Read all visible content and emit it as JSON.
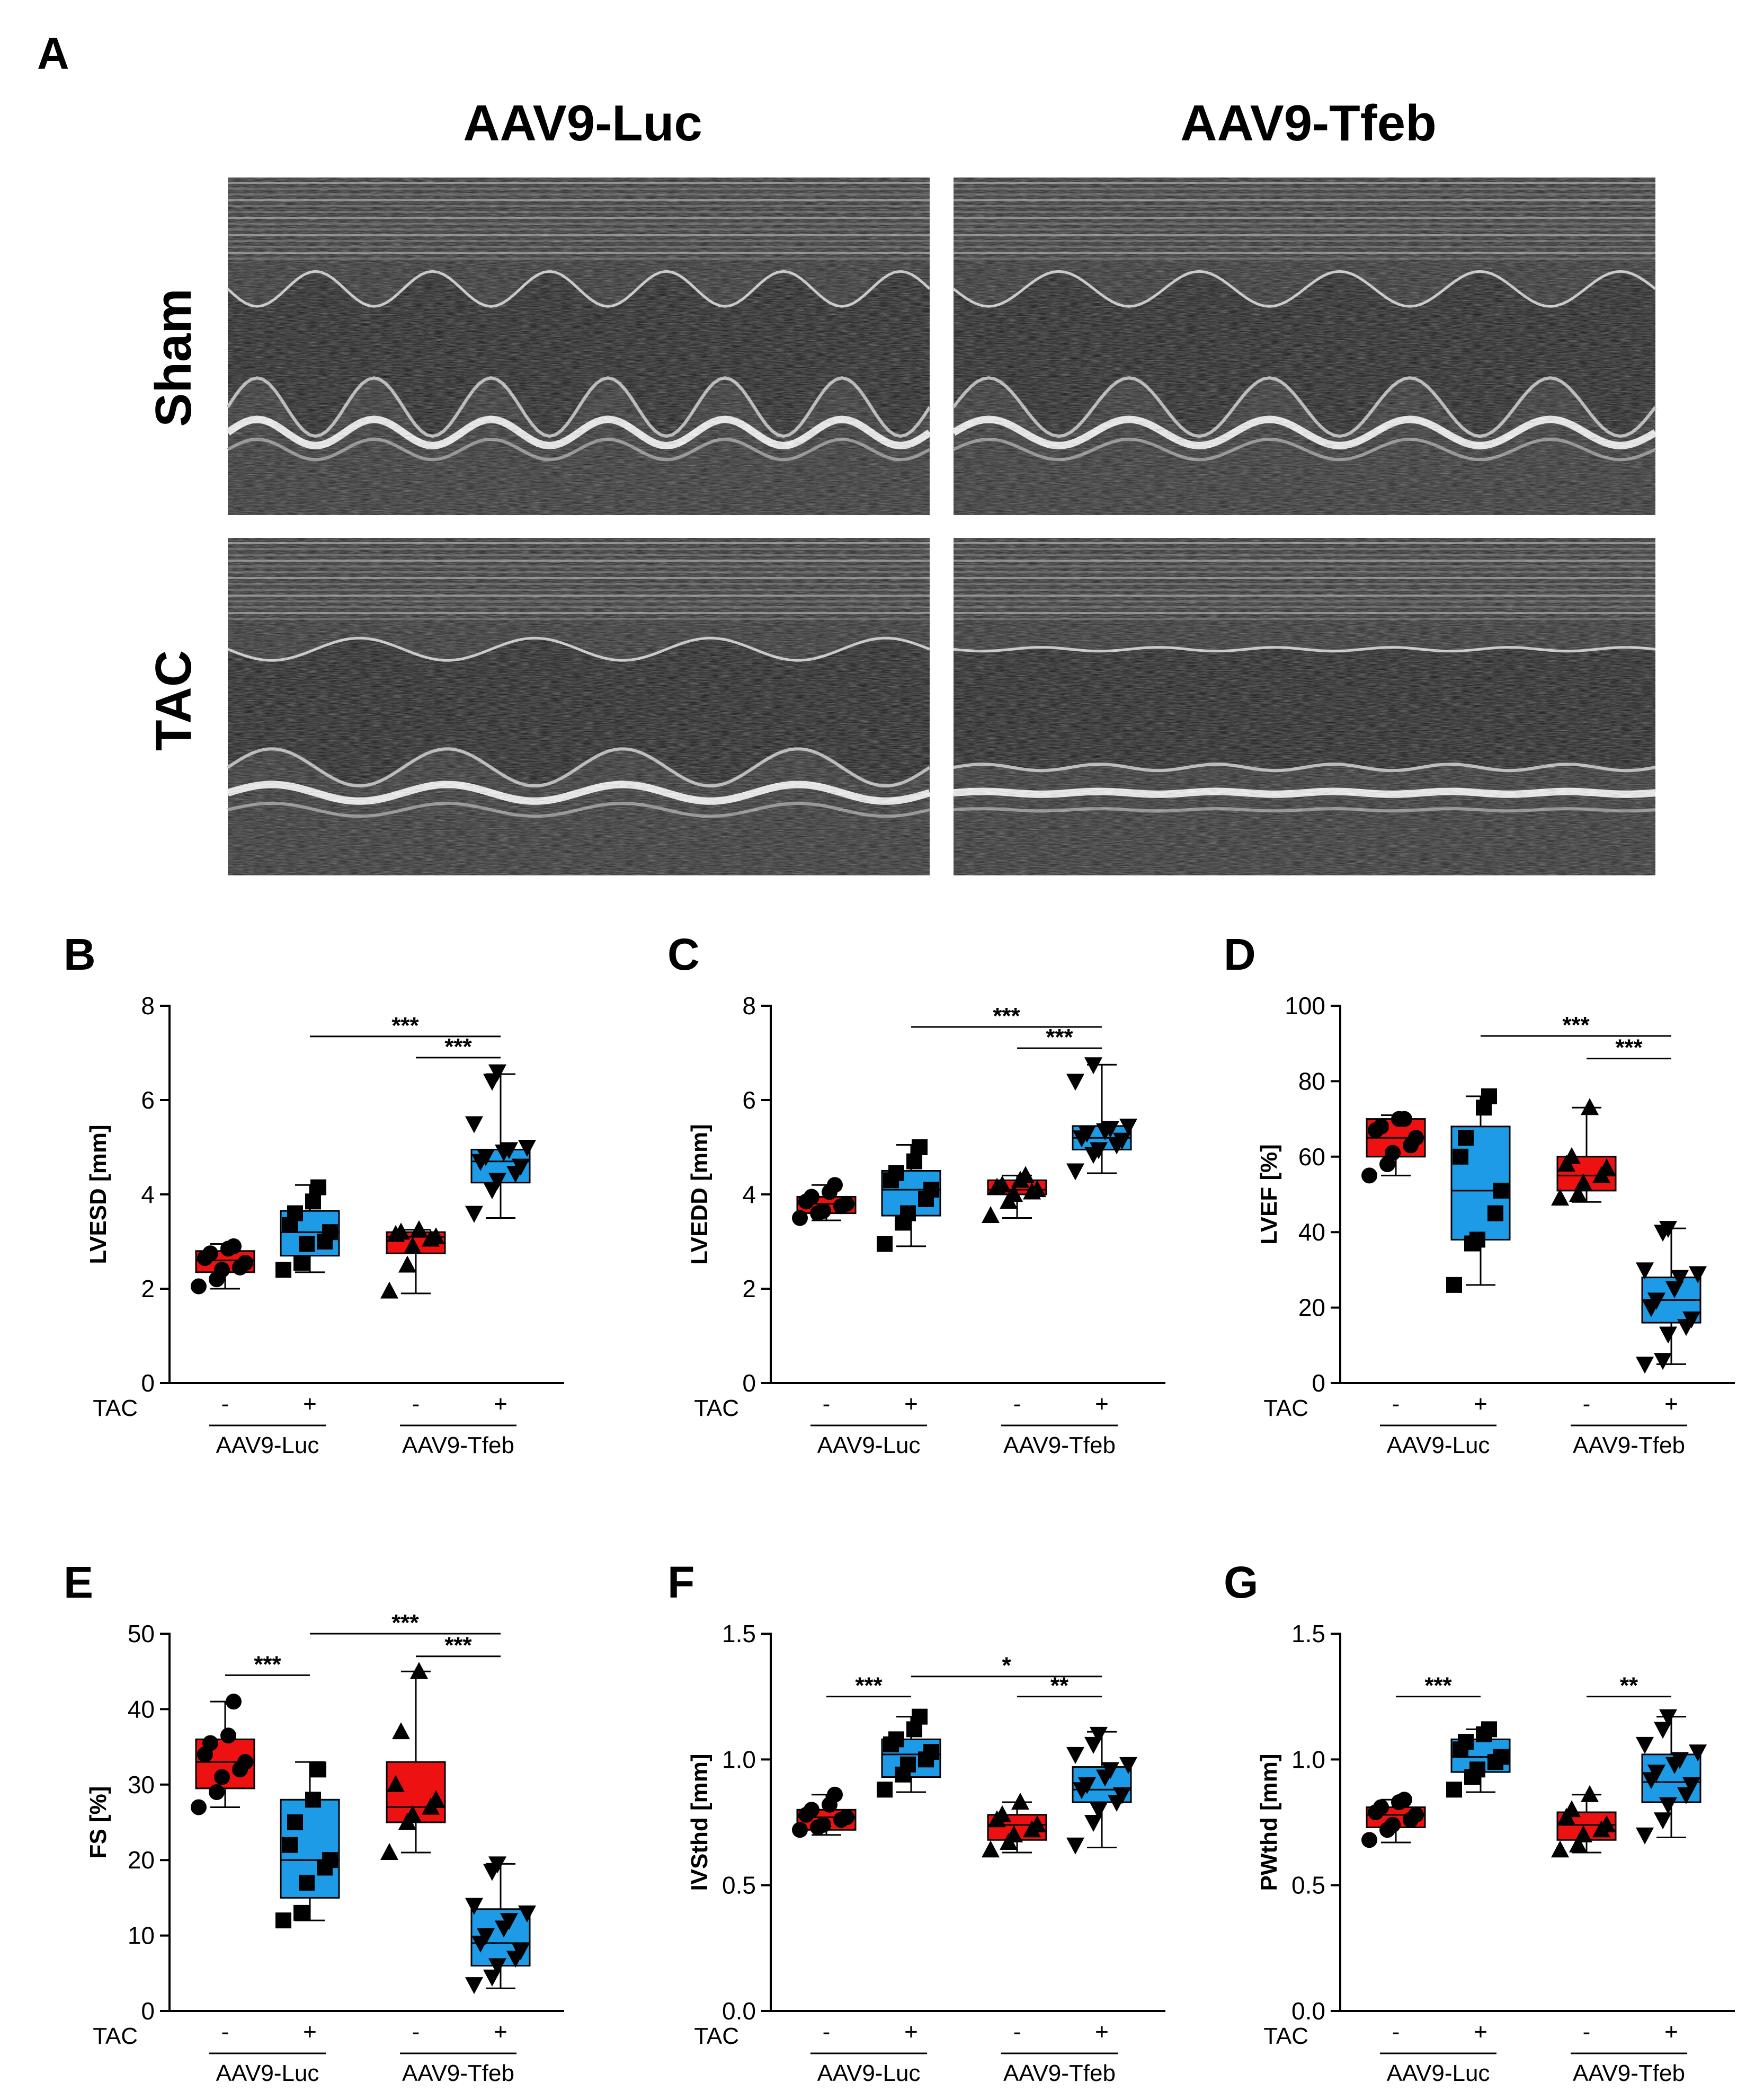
{
  "figure_a": {
    "letter": "A",
    "columns": [
      "AAV9-Luc",
      "AAV9-Tfeb"
    ],
    "rows": [
      "Sham",
      "TAC"
    ]
  },
  "colors": {
    "sham": "#ee1111",
    "tac": "#1e9be6",
    "ink": "#000000"
  },
  "factor_label": "TAC",
  "chart_data": [
    {
      "letter": "B",
      "type": "box",
      "ylabel": "LVESD [mm]",
      "ylim": [
        0,
        8
      ],
      "yticks": [
        0,
        2,
        4,
        6,
        8
      ],
      "ytick_labels": [
        "0",
        "2",
        "4",
        "6",
        "8"
      ],
      "tac_signs": [
        "-",
        "+",
        "-",
        "+"
      ],
      "groups": [
        "AAV9-Luc",
        "AAV9-Tfeb"
      ],
      "series": [
        {
          "marker": "circle",
          "fill": "sham",
          "box": [
            2.0,
            2.35,
            2.6,
            2.8,
            2.95
          ],
          "points": [
            2.05,
            2.2,
            2.4,
            2.45,
            2.55,
            2.65,
            2.75,
            2.85,
            2.9
          ]
        },
        {
          "marker": "square",
          "fill": "tac",
          "box": [
            2.35,
            2.7,
            3.2,
            3.65,
            4.2
          ],
          "points": [
            2.4,
            2.55,
            2.95,
            3.0,
            3.2,
            3.35,
            3.6,
            3.85,
            4.15
          ]
        },
        {
          "marker": "triangle-up",
          "fill": "sham",
          "box": [
            1.9,
            2.75,
            3.1,
            3.2,
            3.25
          ],
          "points": [
            1.95,
            2.5,
            2.9,
            3.05,
            3.1,
            3.15,
            3.2,
            3.25
          ]
        },
        {
          "marker": "triangle-down",
          "fill": "tac",
          "box": [
            3.5,
            4.25,
            4.7,
            4.95,
            6.55
          ],
          "points": [
            3.6,
            4.1,
            4.3,
            4.45,
            4.6,
            4.7,
            4.8,
            4.9,
            4.95,
            5.0,
            5.5,
            6.4,
            6.6
          ]
        }
      ],
      "sig": [
        {
          "from": 1,
          "to": 3,
          "y": 7.35,
          "label": "***"
        },
        {
          "from": 2,
          "to": 3,
          "y": 6.9,
          "label": "***"
        }
      ]
    },
    {
      "letter": "C",
      "type": "box",
      "ylabel": "LVEDD [mm]",
      "ylim": [
        0,
        8
      ],
      "yticks": [
        0,
        2,
        4,
        6,
        8
      ],
      "ytick_labels": [
        "0",
        "2",
        "4",
        "6",
        "8"
      ],
      "tac_signs": [
        "-",
        "+",
        "-",
        "+"
      ],
      "groups": [
        "AAV9-Luc",
        "AAV9-Tfeb"
      ],
      "series": [
        {
          "marker": "circle",
          "fill": "sham",
          "box": [
            3.45,
            3.6,
            3.8,
            3.95,
            4.2
          ],
          "points": [
            3.5,
            3.6,
            3.65,
            3.75,
            3.8,
            3.85,
            3.95,
            4.05,
            4.2
          ]
        },
        {
          "marker": "square",
          "fill": "tac",
          "box": [
            2.9,
            3.55,
            4.1,
            4.5,
            5.05
          ],
          "points": [
            2.95,
            3.4,
            3.6,
            3.9,
            4.1,
            4.3,
            4.45,
            4.7,
            5.0
          ]
        },
        {
          "marker": "triangle-up",
          "fill": "sham",
          "box": [
            3.5,
            4.0,
            4.1,
            4.3,
            4.4
          ],
          "points": [
            3.55,
            3.85,
            4.0,
            4.05,
            4.1,
            4.15,
            4.2,
            4.3,
            4.4
          ]
        },
        {
          "marker": "triangle-down",
          "fill": "tac",
          "box": [
            4.45,
            4.95,
            5.2,
            5.45,
            6.75
          ],
          "points": [
            4.5,
            4.85,
            4.95,
            5.05,
            5.15,
            5.2,
            5.3,
            5.35,
            5.4,
            5.45,
            6.4,
            6.75
          ]
        }
      ],
      "sig": [
        {
          "from": 1,
          "to": 3,
          "y": 7.55,
          "label": "***"
        },
        {
          "from": 2,
          "to": 3,
          "y": 7.1,
          "label": "***"
        }
      ]
    },
    {
      "letter": "D",
      "type": "box",
      "ylabel": "LVEF [%]",
      "ylim": [
        0,
        100
      ],
      "yticks": [
        0,
        20,
        40,
        60,
        80,
        100
      ],
      "ytick_labels": [
        "0",
        "20",
        "40",
        "60",
        "80",
        "100"
      ],
      "tac_signs": [
        "-",
        "+",
        "-",
        "+"
      ],
      "groups": [
        "AAV9-Luc",
        "AAV9-Tfeb"
      ],
      "series": [
        {
          "marker": "circle",
          "fill": "sham",
          "box": [
            55,
            60,
            65,
            70,
            71
          ],
          "points": [
            55,
            58,
            61,
            63,
            65,
            67,
            68,
            70,
            70
          ]
        },
        {
          "marker": "square",
          "fill": "tac",
          "box": [
            26,
            38,
            51,
            68,
            76
          ],
          "points": [
            26,
            37,
            38,
            45,
            51,
            60,
            65,
            73,
            76
          ]
        },
        {
          "marker": "triangle-up",
          "fill": "sham",
          "box": [
            48,
            51,
            55,
            60,
            73
          ],
          "points": [
            49,
            50,
            53,
            55,
            57,
            58,
            60,
            73
          ]
        },
        {
          "marker": "triangle-down",
          "fill": "tac",
          "box": [
            5,
            16,
            22,
            28,
            41
          ],
          "points": [
            5,
            6,
            13,
            15,
            17,
            20,
            22,
            25,
            28,
            29,
            30,
            40,
            41
          ]
        }
      ],
      "sig": [
        {
          "from": 1,
          "to": 3,
          "y": 92,
          "label": "***"
        },
        {
          "from": 2,
          "to": 3,
          "y": 86,
          "label": "***"
        }
      ]
    },
    {
      "letter": "E",
      "type": "box",
      "ylabel": "FS [%]",
      "ylim": [
        0,
        50
      ],
      "yticks": [
        0,
        10,
        20,
        30,
        40,
        50
      ],
      "ytick_labels": [
        "0",
        "10",
        "20",
        "30",
        "40",
        "50"
      ],
      "tac_signs": [
        "-",
        "+",
        "-",
        "+"
      ],
      "groups": [
        "AAV9-Luc",
        "AAV9-Tfeb"
      ],
      "series": [
        {
          "marker": "circle",
          "fill": "sham",
          "box": [
            27,
            29.5,
            33,
            36,
            41
          ],
          "points": [
            27,
            29,
            31,
            32,
            33,
            34,
            35.5,
            36.5,
            41
          ]
        },
        {
          "marker": "square",
          "fill": "tac",
          "box": [
            12,
            15,
            20,
            28,
            33
          ],
          "points": [
            12,
            13,
            17,
            19,
            20,
            22,
            25,
            28,
            32
          ]
        },
        {
          "marker": "triangle-up",
          "fill": "sham",
          "box": [
            21,
            25,
            27,
            33,
            45
          ],
          "points": [
            21,
            25,
            26,
            27,
            28,
            30,
            37,
            45
          ]
        },
        {
          "marker": "triangle-down",
          "fill": "tac",
          "box": [
            3,
            6,
            9,
            13.5,
            19.5
          ],
          "points": [
            3.5,
            4.5,
            6,
            7,
            8,
            9,
            10,
            11,
            12,
            13,
            14,
            18.5,
            19.5
          ]
        }
      ],
      "sig": [
        {
          "from": 0,
          "to": 1,
          "y": 44.5,
          "label": "***"
        },
        {
          "from": 1,
          "to": 3,
          "y": 50,
          "label": "***"
        },
        {
          "from": 2,
          "to": 3,
          "y": 47,
          "label": "***"
        }
      ]
    },
    {
      "letter": "F",
      "type": "box",
      "ylabel": "IVSthd [mm]",
      "ylim": [
        0,
        1.5
      ],
      "yticks": [
        0,
        0.5,
        1.0,
        1.5
      ],
      "ytick_labels": [
        "0.0",
        "0.5",
        "1.0",
        "1.5"
      ],
      "tac_signs": [
        "-",
        "+",
        "-",
        "+"
      ],
      "groups": [
        "AAV9-Luc",
        "AAV9-Tfeb"
      ],
      "series": [
        {
          "marker": "circle",
          "fill": "sham",
          "box": [
            0.7,
            0.72,
            0.77,
            0.8,
            0.86
          ],
          "points": [
            0.72,
            0.73,
            0.74,
            0.76,
            0.77,
            0.78,
            0.8,
            0.82,
            0.86
          ]
        },
        {
          "marker": "square",
          "fill": "tac",
          "box": [
            0.87,
            0.93,
            1.02,
            1.08,
            1.17
          ],
          "points": [
            0.88,
            0.94,
            0.98,
            1.0,
            1.03,
            1.06,
            1.08,
            1.12,
            1.17
          ]
        },
        {
          "marker": "triangle-up",
          "fill": "sham",
          "box": [
            0.63,
            0.68,
            0.74,
            0.78,
            0.83
          ],
          "points": [
            0.64,
            0.67,
            0.7,
            0.72,
            0.74,
            0.76,
            0.78,
            0.83
          ]
        },
        {
          "marker": "triangle-down",
          "fill": "tac",
          "box": [
            0.65,
            0.83,
            0.88,
            0.97,
            1.11
          ],
          "points": [
            0.66,
            0.75,
            0.8,
            0.83,
            0.86,
            0.88,
            0.9,
            0.93,
            0.96,
            0.98,
            1.02,
            1.06,
            1.1
          ]
        }
      ],
      "sig": [
        {
          "from": 0,
          "to": 1,
          "y": 1.25,
          "label": "***"
        },
        {
          "from": 1,
          "to": 3,
          "y": 1.33,
          "label": "*"
        },
        {
          "from": 2,
          "to": 3,
          "y": 1.25,
          "label": "**"
        }
      ]
    },
    {
      "letter": "G",
      "type": "box",
      "ylabel": "PWthd [mm]",
      "ylim": [
        0,
        1.5
      ],
      "yticks": [
        0,
        0.5,
        1.0,
        1.5
      ],
      "ytick_labels": [
        "0.0",
        "0.5",
        "1.0",
        "1.5"
      ],
      "tac_signs": [
        "-",
        "+",
        "-",
        "+"
      ],
      "groups": [
        "AAV9-Luc",
        "AAV9-Tfeb"
      ],
      "series": [
        {
          "marker": "circle",
          "fill": "sham",
          "box": [
            0.67,
            0.73,
            0.78,
            0.81,
            0.84
          ],
          "points": [
            0.68,
            0.72,
            0.74,
            0.76,
            0.78,
            0.79,
            0.81,
            0.83,
            0.84
          ]
        },
        {
          "marker": "square",
          "fill": "tac",
          "box": [
            0.87,
            0.95,
            1.01,
            1.08,
            1.12
          ],
          "points": [
            0.88,
            0.93,
            0.96,
            0.99,
            1.01,
            1.04,
            1.07,
            1.1,
            1.12
          ]
        },
        {
          "marker": "triangle-up",
          "fill": "sham",
          "box": [
            0.63,
            0.68,
            0.74,
            0.79,
            0.86
          ],
          "points": [
            0.64,
            0.66,
            0.7,
            0.72,
            0.74,
            0.77,
            0.8,
            0.86
          ]
        },
        {
          "marker": "triangle-down",
          "fill": "tac",
          "box": [
            0.69,
            0.83,
            0.91,
            1.02,
            1.17
          ],
          "points": [
            0.7,
            0.76,
            0.82,
            0.86,
            0.9,
            0.92,
            0.95,
            0.98,
            1.0,
            1.03,
            1.06,
            1.12,
            1.17
          ]
        }
      ],
      "sig": [
        {
          "from": 0,
          "to": 1,
          "y": 1.25,
          "label": "***"
        },
        {
          "from": 2,
          "to": 3,
          "y": 1.25,
          "label": "**"
        }
      ]
    }
  ]
}
